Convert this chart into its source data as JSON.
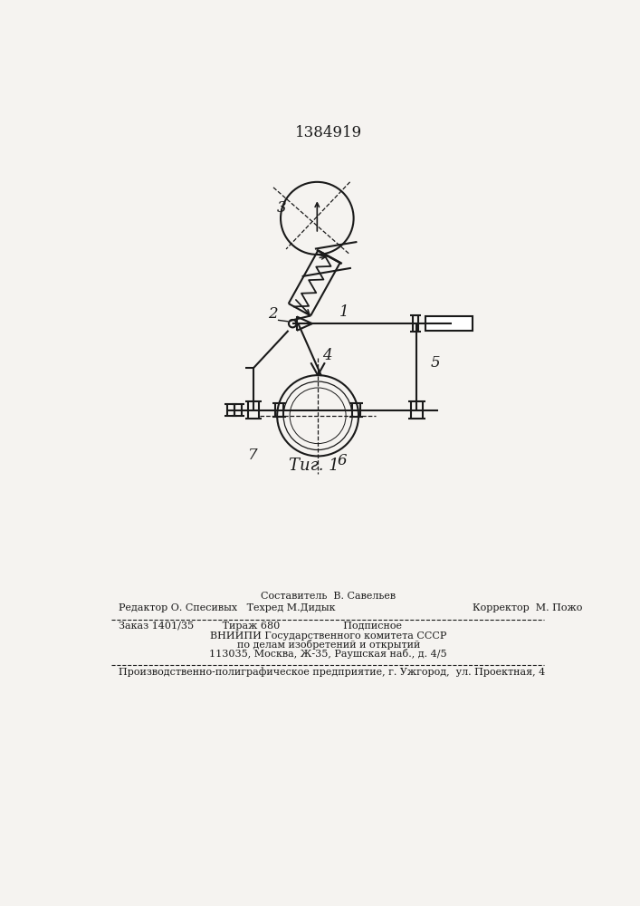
{
  "title": "1384919",
  "fig_label": "Τиг. 1",
  "bg_color": "#f5f3f0",
  "line_color": "#1a1a1a",
  "label1": "1",
  "label2": "2",
  "label3": "3",
  "label4": "4",
  "label5": "5",
  "label6": "6",
  "label7": "7",
  "footer_line1": "Составитель  В. Савельев",
  "footer_line2_left": "Редактор О. Спесивых   Техред М.Дидык",
  "footer_line2_right": "Корректор  М. Пожо",
  "footer_line3": "Заказ 1401/35         Тираж 680                    Подписное",
  "footer_line4": "ВНИИПИ Государственного комитета СССР",
  "footer_line5": "по делам изобретений и открытий",
  "footer_line6": "113035, Москва, Ж-35, Раушская наб., д. 4/5",
  "footer_line7": "Производственно-полиграфическое предприятие, г. Ужгород,  ул. Проектная, 4"
}
